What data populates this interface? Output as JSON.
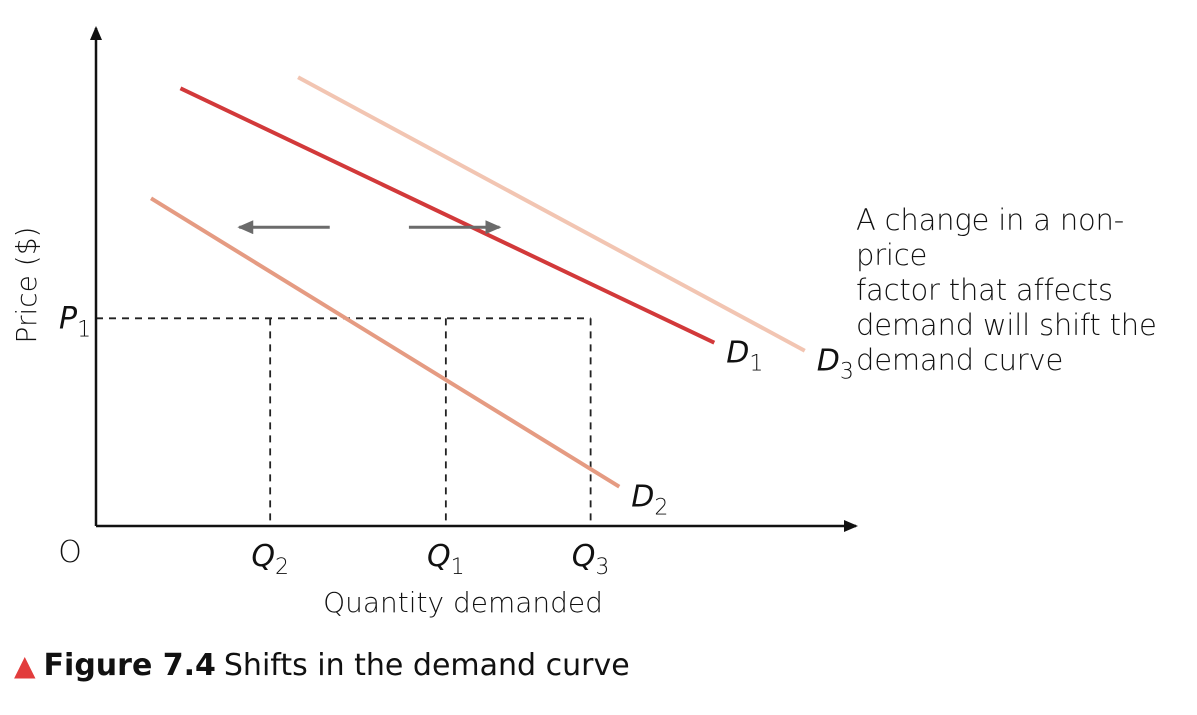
{
  "chart_data": {
    "type": "line",
    "title": "",
    "xlabel": "Quantity demanded",
    "ylabel": "Price ($)",
    "origin_label": "O",
    "xlim": [
      0,
      100
    ],
    "ylim": [
      0,
      100
    ],
    "grid": false,
    "series": [
      {
        "name": "D1",
        "label_main": "D",
        "label_sub": "1",
        "color": "#d2393a",
        "x": [
          11.2,
          82.0
        ],
        "y": [
          87.9,
          36.8
        ]
      },
      {
        "name": "D2",
        "label_main": "D",
        "label_sub": "2",
        "color": "#e59b82",
        "x": [
          7.3,
          69.4
        ],
        "y": [
          65.8,
          7.9
        ]
      },
      {
        "name": "D3",
        "label_main": "D",
        "label_sub": "3",
        "color": "#f2c5b2",
        "x": [
          26.8,
          94.0
        ],
        "y": [
          90.1,
          35.2
        ]
      }
    ],
    "price_level": {
      "label_main": "P",
      "label_sub": "1",
      "value": 41.7
    },
    "quantity_points": [
      {
        "label_main": "Q",
        "label_sub": "2",
        "value": 23.1
      },
      {
        "label_main": "Q",
        "label_sub": "1",
        "value": 46.4
      },
      {
        "label_main": "Q",
        "label_sub": "3",
        "value": 65.6
      }
    ],
    "shift_arrows": [
      {
        "direction": "left",
        "from_x": 31.0,
        "to_x": 19.0,
        "y": 60.0
      },
      {
        "direction": "right",
        "from_x": 41.5,
        "to_x": 53.5,
        "y": 60.0
      }
    ],
    "annotation": [
      "A change in a non-price",
      "factor that affects",
      "demand will shift the",
      "demand curve"
    ]
  },
  "caption": {
    "marker": "▲",
    "number": "Figure 7.4",
    "title": "Shifts in the demand curve"
  },
  "colors": {
    "accent_red": "#e23c3c",
    "arrow_gray": "#6b6b6b",
    "text": "#111111"
  }
}
